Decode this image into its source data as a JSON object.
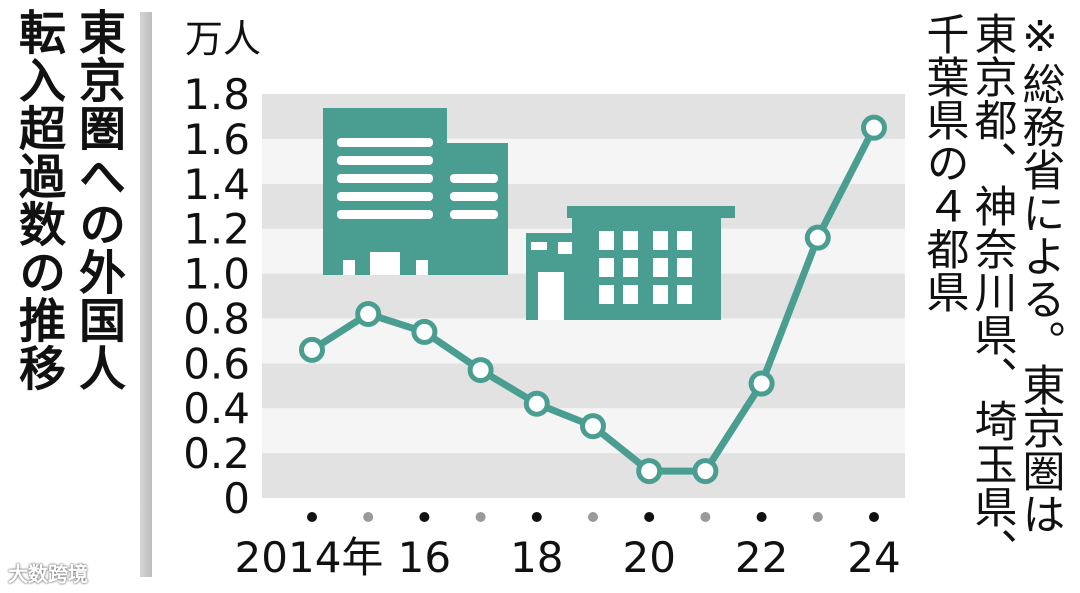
{
  "title_lines": [
    "東京圏への外国人",
    "転入超過数の推移"
  ],
  "note_lines": [
    "※総務省による。東京圏は",
    "東京都、神奈川県、埼玉県、",
    "千葉県の４都県"
  ],
  "watermark": "大数跨境",
  "colors": {
    "line": "#4a9e91",
    "building": "#4a9e91",
    "band_dark": "#e2e2e2",
    "band_light": "#f5f5f5",
    "dot_black": "#111111",
    "dot_gray": "#9a9a9a"
  },
  "chart_data": {
    "type": "line",
    "title": "東京圏への外国人転入超過数の推移",
    "ylabel": "万人",
    "ylim": [
      0,
      1.8
    ],
    "yticks": [
      "0",
      "0.2",
      "0.4",
      "0.6",
      "0.8",
      "1.0",
      "1.2",
      "1.4",
      "1.6",
      "1.8"
    ],
    "x": [
      2014,
      2015,
      2016,
      2017,
      2018,
      2019,
      2020,
      2021,
      2022,
      2023,
      2024
    ],
    "xtick_labels": [
      "2014年",
      "",
      "16",
      "",
      "18",
      "",
      "20",
      "",
      "22",
      "",
      "24"
    ],
    "series": [
      {
        "values": [
          0.66,
          0.82,
          0.74,
          0.57,
          0.42,
          0.32,
          0.12,
          0.12,
          0.51,
          1.16,
          1.65
        ]
      }
    ],
    "grid": "horizontal alternating bands",
    "icons": [
      "office-building-icon",
      "small-building-icon"
    ]
  }
}
